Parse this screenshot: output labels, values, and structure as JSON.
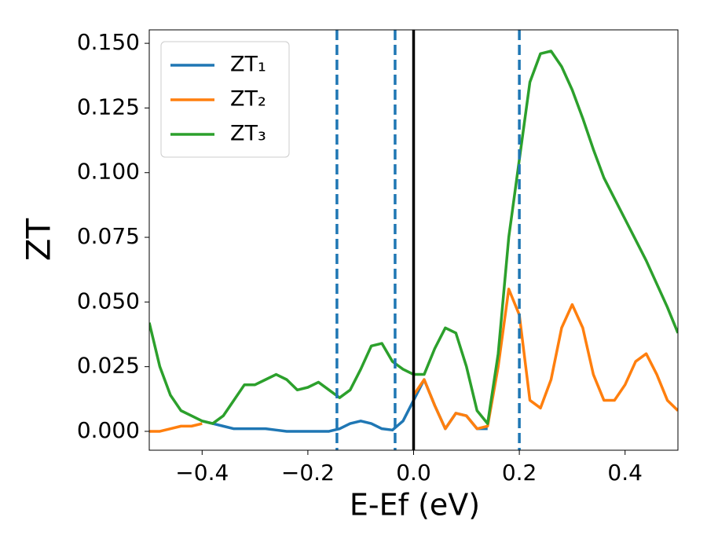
{
  "chart_data": {
    "type": "line",
    "x": [
      -0.5,
      -0.48,
      -0.46,
      -0.44,
      -0.42,
      -0.4,
      -0.38,
      -0.36,
      -0.34,
      -0.32,
      -0.3,
      -0.28,
      -0.26,
      -0.24,
      -0.22,
      -0.2,
      -0.18,
      -0.16,
      -0.14,
      -0.12,
      -0.1,
      -0.08,
      -0.06,
      -0.04,
      -0.02,
      0,
      0.02,
      0.04,
      0.06,
      0.08,
      0.1,
      0.12,
      0.14,
      0.16,
      0.18,
      0.2,
      0.22,
      0.24,
      0.26,
      0.28,
      0.3,
      0.32,
      0.34,
      0.36,
      0.38,
      0.4,
      0.42,
      0.44,
      0.46,
      0.48,
      0.5
    ],
    "series": [
      {
        "name": "ZT₁",
        "color": "#1f77b4",
        "values": [
          null,
          null,
          null,
          null,
          null,
          0.004,
          0.003,
          0.002,
          0.001,
          0.001,
          0.001,
          0.001,
          0.0005,
          0,
          0,
          0,
          0,
          0,
          0.001,
          0.003,
          0.004,
          0.003,
          0.001,
          0.0005,
          0.004,
          0.012,
          0.02,
          0.01,
          0.001,
          0.007,
          0.006,
          0.001,
          0.001,
          null,
          null,
          null,
          null,
          null,
          null,
          null,
          null,
          null,
          null,
          null,
          null,
          null,
          null,
          null,
          null,
          null,
          null
        ]
      },
      {
        "name": "ZT₂",
        "color": "#ff7f0e",
        "values": [
          0,
          0,
          0.001,
          0.002,
          0.002,
          0.003,
          null,
          null,
          null,
          null,
          null,
          null,
          null,
          null,
          null,
          null,
          null,
          null,
          null,
          null,
          null,
          null,
          null,
          null,
          null,
          0.014,
          0.02,
          0.01,
          0.001,
          0.007,
          0.006,
          0.001,
          0.002,
          0.025,
          0.055,
          0.045,
          0.012,
          0.009,
          0.02,
          0.04,
          0.049,
          0.04,
          0.022,
          0.012,
          0.012,
          0.018,
          0.027,
          0.03,
          0.022,
          0.012,
          0.008
        ]
      },
      {
        "name": "ZT₃",
        "color": "#2ca02c",
        "values": [
          0.042,
          0.025,
          0.014,
          0.008,
          0.006,
          0.004,
          0.003,
          0.006,
          0.012,
          0.018,
          0.018,
          0.02,
          0.022,
          0.02,
          0.016,
          0.017,
          0.019,
          0.016,
          0.013,
          0.016,
          0.024,
          0.033,
          0.034,
          0.027,
          0.024,
          0.022,
          0.022,
          0.032,
          0.04,
          0.038,
          0.025,
          0.008,
          0.003,
          0.03,
          0.075,
          0.105,
          0.135,
          0.146,
          0.147,
          0.141,
          0.132,
          0.121,
          0.109,
          0.098,
          0.09,
          0.082,
          0.074,
          0.066,
          0.057,
          0.048,
          0.038
        ]
      }
    ],
    "vlines": [
      {
        "x": -0.145,
        "color": "#1f77b4",
        "style": "dashed"
      },
      {
        "x": -0.035,
        "color": "#1f77b4",
        "style": "dashed"
      },
      {
        "x": 0,
        "color": "#000000",
        "style": "solid"
      },
      {
        "x": 0.2,
        "color": "#1f77b4",
        "style": "dashed"
      }
    ],
    "x_label": "E-Ef (eV)",
    "y_label": "ZT",
    "xlim": [
      -0.5,
      0.5
    ],
    "xticks": [
      {
        "value": -0.4,
        "label": "−0.4"
      },
      {
        "value": -0.2,
        "label": "−0.2"
      },
      {
        "value": 0,
        "label": "0.0"
      },
      0.2,
      0.4
    ],
    "ylim": [
      -0.0073,
      0.1552
    ],
    "yticks": [
      {
        "value": 0,
        "label": "0.000"
      },
      0.025,
      {
        "value": 0.05,
        "label": "0.050"
      },
      0.075,
      {
        "value": 0.1,
        "label": "0.100"
      },
      0.125,
      {
        "value": 0.15,
        "label": "0.150"
      }
    ],
    "legend": "upper-left"
  }
}
